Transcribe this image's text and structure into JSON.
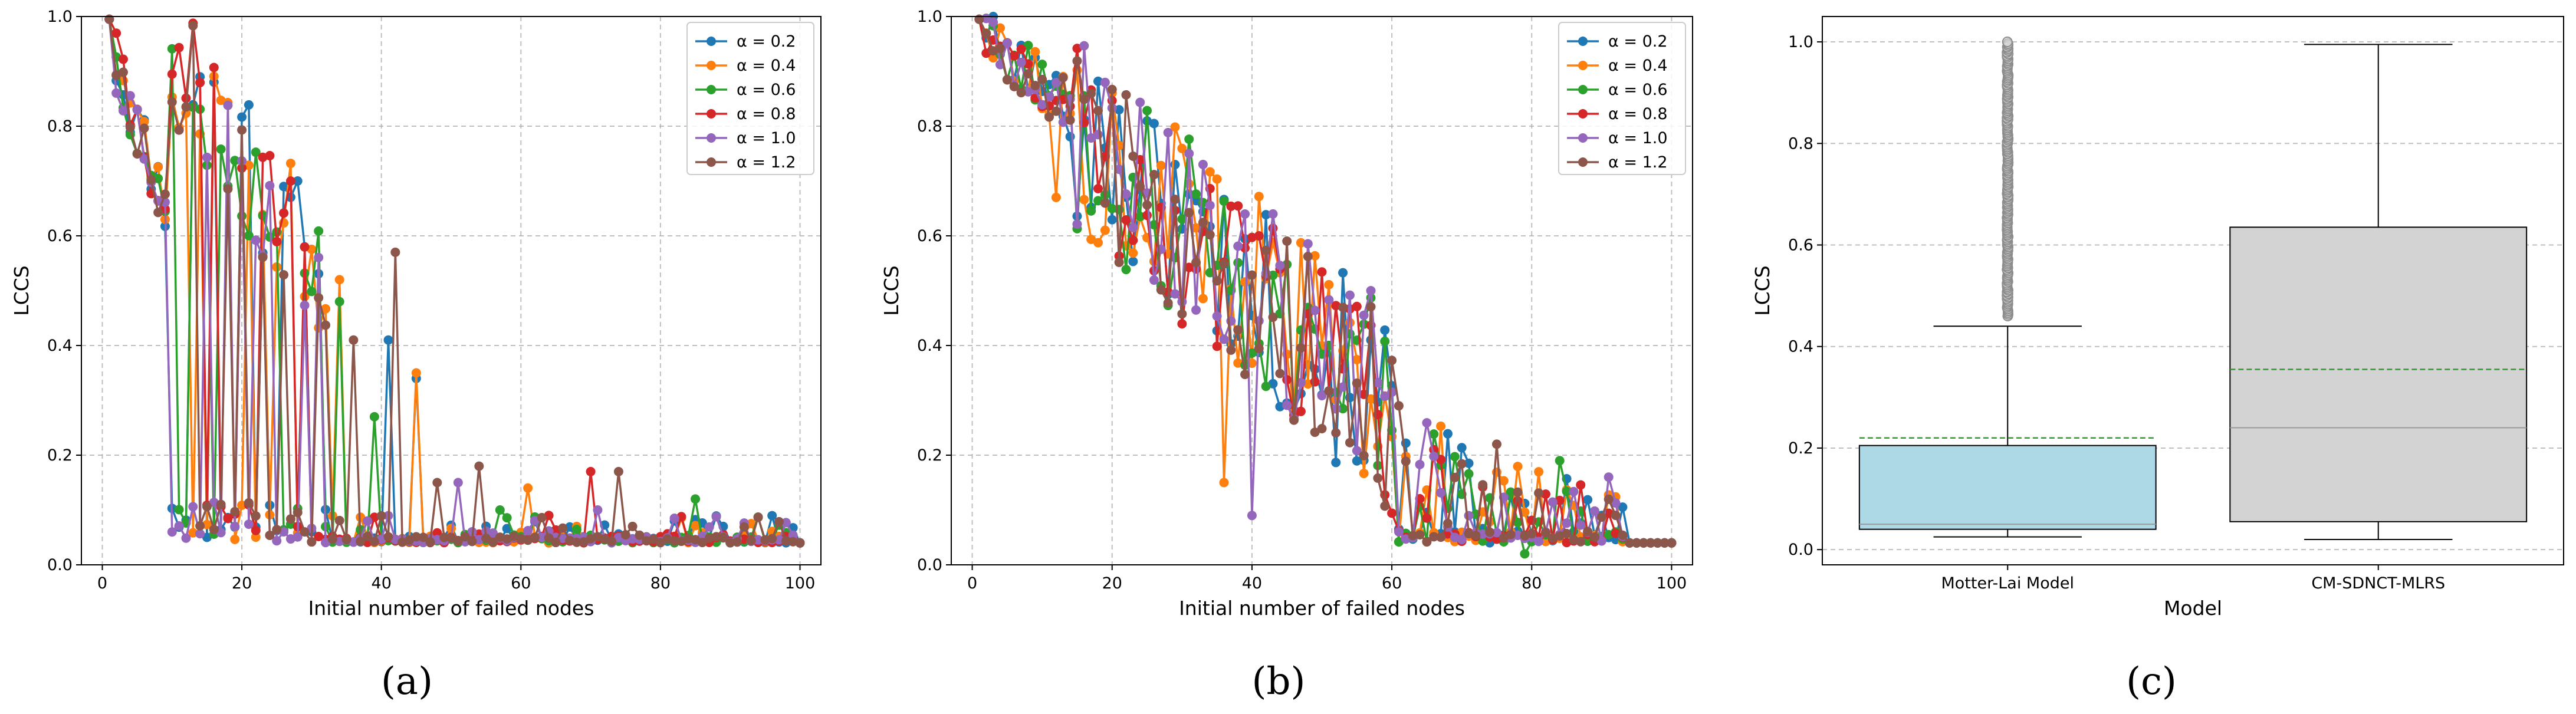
{
  "chart_data": [
    {
      "panel": "a",
      "type": "line",
      "xlabel": "Initial number of failed nodes",
      "ylabel": "LCCS",
      "xlim": [
        -3,
        103
      ],
      "ylim": [
        0,
        1.0
      ],
      "xticks": [
        0,
        20,
        40,
        60,
        80,
        100
      ],
      "yticks": [
        0.0,
        0.2,
        0.4,
        0.6,
        0.8,
        1.0
      ],
      "grid": true,
      "legend_position": "top-right",
      "legend_labels": [
        "α = 0.2",
        "α = 0.4",
        "α = 0.6",
        "α = 0.8",
        "α = 1.0",
        "α = 1.2"
      ],
      "series": [
        {
          "name": "α = 0.2",
          "color": "#1f77b4",
          "generator": {
            "seed": 11,
            "profile": "rapid",
            "drop_center": 28,
            "tail_spikes": [
              [
                26,
                0.69
              ],
              [
                28,
                0.7
              ],
              [
                29,
                0.58
              ],
              [
                41,
                0.41
              ],
              [
                45,
                0.34
              ],
              [
                82,
                0.08
              ],
              [
                89,
                0.07
              ]
            ]
          }
        },
        {
          "name": "α = 0.4",
          "color": "#ff7f0e",
          "generator": {
            "seed": 23,
            "profile": "rapid",
            "drop_center": 30,
            "tail_spikes": [
              [
                34,
                0.52
              ],
              [
                45,
                0.35
              ],
              [
                61,
                0.14
              ],
              [
                68,
                0.07
              ]
            ]
          }
        },
        {
          "name": "α = 0.6",
          "color": "#2ca02c",
          "generator": {
            "seed": 37,
            "profile": "rapid",
            "drop_center": 27,
            "tail_spikes": [
              [
                34,
                0.48
              ],
              [
                39,
                0.27
              ],
              [
                85,
                0.12
              ],
              [
                57,
                0.1
              ]
            ]
          }
        },
        {
          "name": "α = 0.8",
          "color": "#d62728",
          "generator": {
            "seed": 41,
            "profile": "rapid",
            "drop_center": 25,
            "tail_spikes": [
              [
                70,
                0.17
              ],
              [
                64,
                0.09
              ]
            ]
          }
        },
        {
          "name": "α = 1.0",
          "color": "#9467bd",
          "generator": {
            "seed": 53,
            "profile": "rapid",
            "drop_center": 26,
            "tail_spikes": [
              [
                51,
                0.15
              ],
              [
                10,
                0.06
              ],
              [
                71,
                0.1
              ]
            ]
          }
        },
        {
          "name": "α = 1.2",
          "color": "#8c564b",
          "generator": {
            "seed": 67,
            "profile": "rapid",
            "drop_center": 29,
            "tail_spikes": [
              [
                42,
                0.57
              ],
              [
                36,
                0.41
              ],
              [
                74,
                0.17
              ],
              [
                54,
                0.18
              ],
              [
                48,
                0.15
              ]
            ]
          }
        }
      ]
    },
    {
      "panel": "b",
      "type": "line",
      "xlabel": "Initial number of failed nodes",
      "ylabel": "LCCS",
      "xlim": [
        -3,
        103
      ],
      "ylim": [
        0,
        1.0
      ],
      "xticks": [
        0,
        20,
        40,
        60,
        80,
        100
      ],
      "yticks": [
        0.0,
        0.2,
        0.4,
        0.6,
        0.8,
        1.0
      ],
      "grid": true,
      "legend_position": "top-right",
      "legend_labels": [
        "α = 0.2",
        "α = 0.4",
        "α = 0.6",
        "α = 0.8",
        "α = 1.0",
        "α = 1.2"
      ],
      "series": [
        {
          "name": "α = 0.2",
          "color": "#1f77b4",
          "generator": {
            "seed": 101,
            "profile": "gradual",
            "tail_spikes": [
              [
                21,
                0.83
              ],
              [
                29,
                0.73
              ],
              [
                57,
                0.41
              ],
              [
                90,
                0.09
              ]
            ]
          }
        },
        {
          "name": "α = 0.4",
          "color": "#ff7f0e",
          "generator": {
            "seed": 113,
            "profile": "gradual",
            "tail_spikes": [
              [
                36,
                0.15
              ],
              [
                12,
                0.67
              ]
            ]
          }
        },
        {
          "name": "α = 0.6",
          "color": "#2ca02c",
          "generator": {
            "seed": 127,
            "profile": "gradual",
            "tail_spikes": [
              [
                49,
                0.43
              ],
              [
                84,
                0.19
              ],
              [
                79,
                0.02
              ]
            ]
          }
        },
        {
          "name": "α = 0.8",
          "color": "#d62728",
          "generator": {
            "seed": 131,
            "profile": "gradual",
            "tail_spikes": [
              [
                41,
                0.6
              ],
              [
                66,
                0.21
              ]
            ]
          }
        },
        {
          "name": "α = 1.0",
          "color": "#9467bd",
          "generator": {
            "seed": 149,
            "profile": "gradual",
            "tail_spikes": [
              [
                57,
                0.5
              ],
              [
                40,
                0.09
              ],
              [
                91,
                0.16
              ]
            ]
          }
        },
        {
          "name": "α = 1.2",
          "color": "#8c564b",
          "generator": {
            "seed": 157,
            "profile": "gradual",
            "tail_spikes": [
              [
                61,
                0.29
              ],
              [
                75,
                0.22
              ]
            ]
          }
        }
      ]
    },
    {
      "panel": "c",
      "type": "box",
      "xlabel": "Model",
      "ylabel": "LCCS",
      "ylim": [
        -0.03,
        1.05
      ],
      "yticks": [
        0.0,
        0.2,
        0.4,
        0.6,
        0.8,
        1.0
      ],
      "grid": true,
      "categories": [
        "Motter-Lai Model",
        "CM-SDNCT-MLRS"
      ],
      "boxes": [
        {
          "name": "Motter-Lai Model",
          "color": "#add8e6",
          "whisker_low": 0.025,
          "q1": 0.04,
          "median": 0.05,
          "q3": 0.205,
          "whisker_high": 0.44,
          "mean": 0.22,
          "outliers_range": [
            0.46,
            1.0
          ],
          "outlier_count": 160
        },
        {
          "name": "CM-SDNCT-MLRS",
          "color": "#d3d3d3",
          "whisker_low": 0.02,
          "q1": 0.055,
          "median": 0.24,
          "q3": 0.635,
          "whisker_high": 0.995,
          "mean": 0.355,
          "outliers_range": null,
          "outlier_count": 0
        }
      ]
    }
  ],
  "panel_labels": [
    "(a)",
    "(b)",
    "(c)"
  ]
}
